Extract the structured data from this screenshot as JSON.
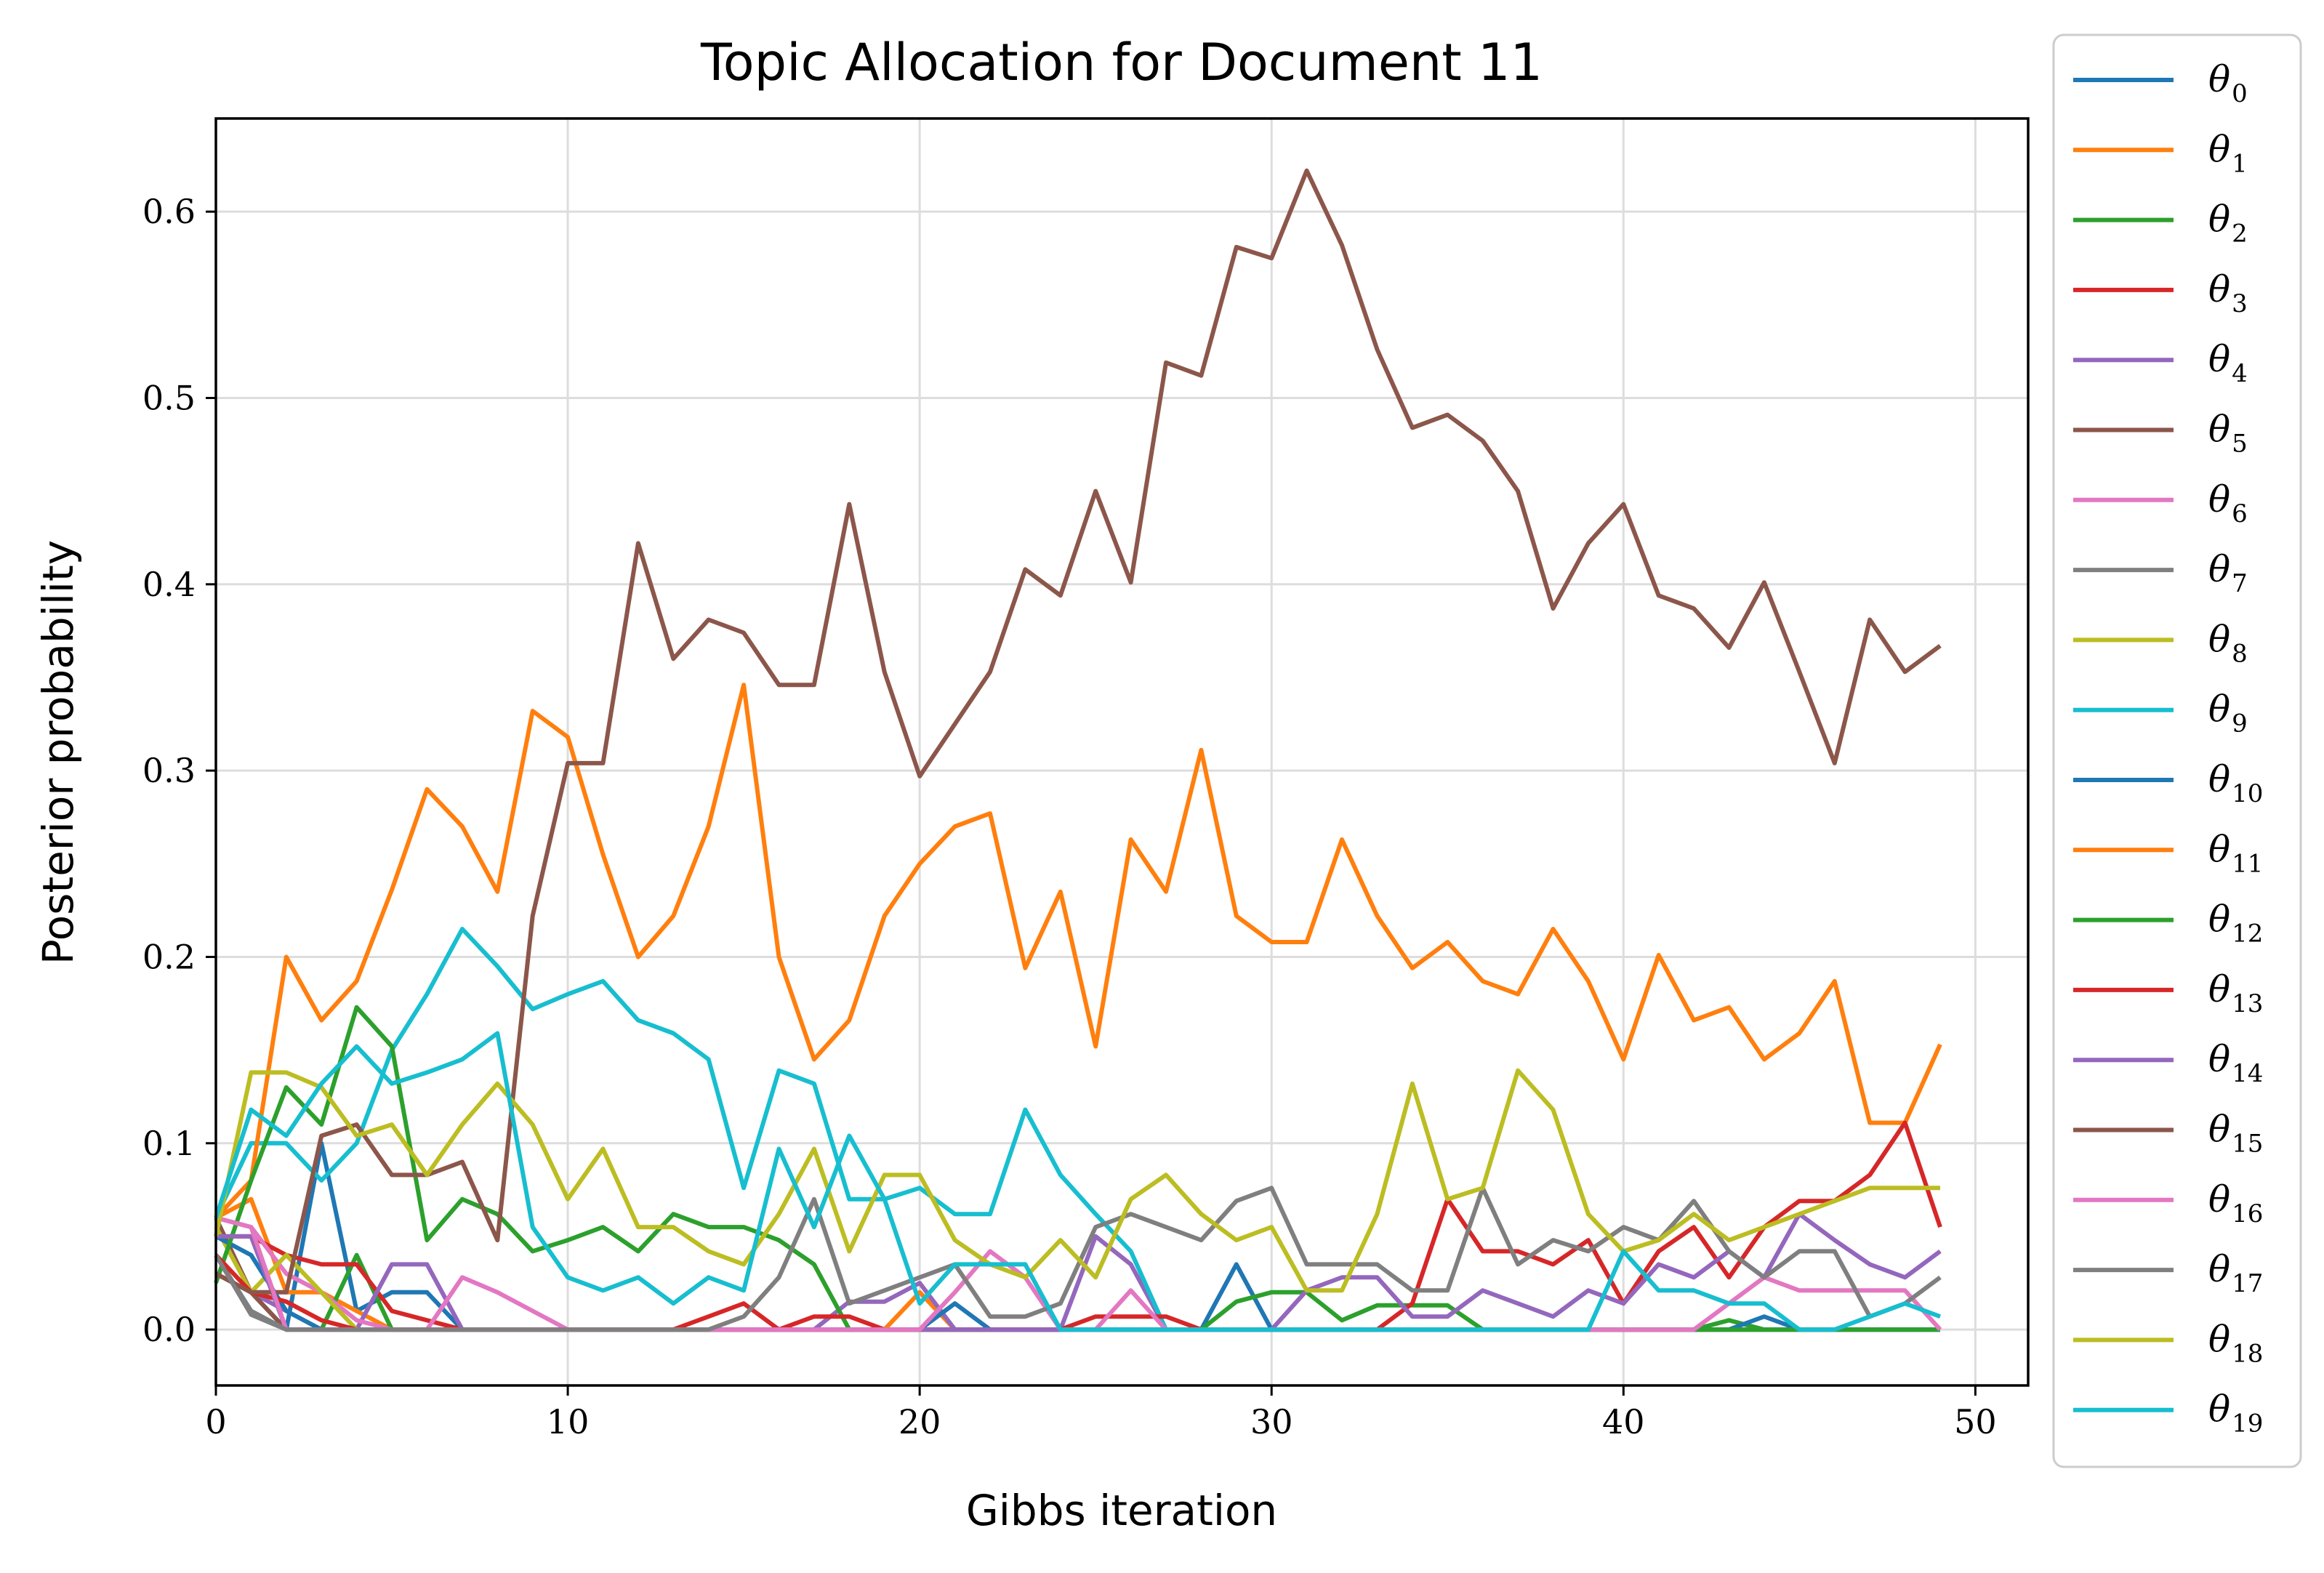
{
  "chart_data": {
    "type": "line",
    "title": "Topic Allocation for Document 11",
    "xlabel": "Gibbs iteration",
    "ylabel": "Posterior probability",
    "xlim": [
      0,
      51.5
    ],
    "ylim": [
      -0.03,
      0.65
    ],
    "x_ticks": [
      0,
      10,
      20,
      30,
      40,
      50
    ],
    "y_ticks": [
      0.0,
      0.1,
      0.2,
      0.3,
      0.4,
      0.5,
      0.6
    ],
    "x_tick_labels": [
      "0",
      "10",
      "20",
      "30",
      "40",
      "50"
    ],
    "y_tick_labels": [
      "0.0",
      "0.1",
      "0.2",
      "0.3",
      "0.4",
      "0.5",
      "0.6"
    ],
    "grid": true,
    "legend_position": "outside-right",
    "x": [
      0,
      1,
      2,
      3,
      4,
      5,
      6,
      7,
      8,
      9,
      10,
      11,
      12,
      13,
      14,
      15,
      16,
      17,
      18,
      19,
      20,
      21,
      22,
      23,
      24,
      25,
      26,
      27,
      28,
      29,
      30,
      31,
      32,
      33,
      34,
      35,
      36,
      37,
      38,
      39,
      40,
      41,
      42,
      43,
      44,
      45,
      46,
      47,
      48,
      49
    ],
    "series": [
      {
        "name": "θ",
        "sub": "0",
        "color": "#1f77b4",
        "values": [
          0.04,
          0.01,
          0.0,
          0.1,
          0.01,
          0.02,
          0.02,
          0.0,
          0.0,
          0.0,
          0.0,
          0.0,
          0.0,
          0.0,
          0.0,
          0.0,
          0.0,
          0.0,
          0.0,
          0.0,
          0.0,
          0.0,
          0.0,
          0.0,
          0.0,
          0.0,
          0.0,
          0.0,
          0.0,
          0.035,
          0.0,
          0.0,
          0.0,
          0.0,
          0.0,
          0.0,
          0.0,
          0.0,
          0.0,
          0.0,
          0.0,
          0.0,
          0.0,
          0.0,
          0.0,
          0.0,
          0.0,
          0.0,
          0.0,
          0.0
        ]
      },
      {
        "name": "θ",
        "sub": "1",
        "color": "#ff7f0e",
        "values": [
          0.06,
          0.07,
          0.02,
          0.02,
          0.01,
          0.0,
          0.0,
          0.0,
          0.0,
          0.0,
          0.0,
          0.0,
          0.0,
          0.0,
          0.0,
          0.0,
          0.0,
          0.0,
          0.0,
          0.0,
          0.02,
          0.0,
          0.0,
          0.0,
          0.0,
          0.0,
          0.0,
          0.0,
          0.0,
          0.0,
          0.0,
          0.0,
          0.0,
          0.0,
          0.0,
          0.0,
          0.0,
          0.0,
          0.0,
          0.0,
          0.0,
          0.0,
          0.0,
          0.0,
          0.0,
          0.0,
          0.0,
          0.0,
          0.0,
          0.0
        ]
      },
      {
        "name": "θ",
        "sub": "2",
        "color": "#2ca02c",
        "values": [
          0.03,
          0.02,
          0.0,
          0.0,
          0.04,
          0.0,
          0.0,
          0.0,
          0.0,
          0.0,
          0.0,
          0.0,
          0.0,
          0.0,
          0.0,
          0.0,
          0.0,
          0.0,
          0.0,
          0.0,
          0.0,
          0.0,
          0.0,
          0.0,
          0.0,
          0.0,
          0.0,
          0.0,
          0.0,
          0.015,
          0.02,
          0.02,
          0.005,
          0.013,
          0.013,
          0.013,
          0.0,
          0.0,
          0.0,
          0.0,
          0.0,
          0.0,
          0.0,
          0.005,
          0.0,
          0.0,
          0.0,
          0.0,
          0.0,
          0.0
        ]
      },
      {
        "name": "θ",
        "sub": "3",
        "color": "#d62728",
        "values": [
          0.05,
          0.05,
          0.04,
          0.035,
          0.035,
          0.01,
          0.005,
          0.0,
          0.0,
          0.0,
          0.0,
          0.0,
          0.0,
          0.0,
          0.0,
          0.0,
          0.0,
          0.0,
          0.0,
          0.0,
          0.0,
          0.0,
          0.0,
          0.0,
          0.0,
          0.0,
          0.0,
          0.0,
          0.0,
          0.0,
          0.0,
          0.0,
          0.0,
          0.0,
          0.0,
          0.0,
          0.0,
          0.0,
          0.0,
          0.0,
          0.0,
          0.0,
          0.0,
          0.0,
          0.0,
          0.0,
          0.0,
          0.0,
          0.0,
          0.0
        ]
      },
      {
        "name": "θ",
        "sub": "4",
        "color": "#9467bd",
        "values": [
          0.03,
          0.02,
          0.01,
          0.0,
          0.0,
          0.035,
          0.035,
          0.0,
          0.0,
          0.0,
          0.0,
          0.0,
          0.0,
          0.0,
          0.0,
          0.0,
          0.0,
          0.0,
          0.015,
          0.015,
          0.025,
          0.0,
          0.0,
          0.0,
          0.0,
          0.05,
          0.035,
          0.0,
          0.0,
          0.0,
          0.0,
          0.0,
          0.0,
          0.0,
          0.0,
          0.0,
          0.0,
          0.0,
          0.0,
          0.0,
          0.0,
          0.0,
          0.0,
          0.0,
          0.0,
          0.0,
          0.0,
          0.0,
          0.0,
          0.0
        ]
      },
      {
        "name": "θ",
        "sub": "5",
        "color": "#8c564b",
        "values": [
          0.06,
          0.02,
          0.0,
          0.0,
          0.0,
          0.0,
          0.0,
          0.0,
          0.0,
          0.0,
          0.0,
          0.0,
          0.0,
          0.0,
          0.0,
          0.0,
          0.0,
          0.0,
          0.0,
          0.0,
          0.0,
          0.0,
          0.0,
          0.0,
          0.0,
          0.0,
          0.0,
          0.0,
          0.0,
          0.0,
          0.0,
          0.0,
          0.0,
          0.0,
          0.0,
          0.0,
          0.0,
          0.0,
          0.0,
          0.0,
          0.0,
          0.0,
          0.0,
          0.0,
          0.0,
          0.0,
          0.0,
          0.0,
          0.0,
          0.0
        ]
      },
      {
        "name": "θ",
        "sub": "6",
        "color": "#e377c2",
        "values": [
          0.06,
          0.055,
          0.03,
          0.02,
          0.005,
          0.0,
          0.0,
          0.028,
          0.02,
          0.01,
          0.0,
          0.0,
          0.0,
          0.0,
          0.0,
          0.0,
          0.0,
          0.0,
          0.0,
          0.0,
          0.0,
          0.0,
          0.0,
          0.0,
          0.0,
          0.0,
          0.0,
          0.0,
          0.0,
          0.0,
          0.0,
          0.0,
          0.0,
          0.0,
          0.0,
          0.0,
          0.0,
          0.0,
          0.0,
          0.0,
          0.0,
          0.0,
          0.0,
          0.0,
          0.0,
          0.0,
          0.0,
          0.0,
          0.0,
          0.0
        ]
      },
      {
        "name": "θ",
        "sub": "7",
        "color": "#7f7f7f",
        "values": [
          0.04,
          0.01,
          0.0,
          0.0,
          0.0,
          0.0,
          0.0,
          0.0,
          0.0,
          0.0,
          0.0,
          0.0,
          0.0,
          0.0,
          0.0,
          0.0,
          0.0,
          0.0,
          0.0,
          0.0,
          0.0,
          0.0,
          0.0,
          0.0,
          0.0,
          0.0,
          0.0,
          0.0,
          0.0,
          0.0,
          0.0,
          0.0,
          0.0,
          0.0,
          0.0,
          0.0,
          0.0,
          0.0,
          0.0,
          0.0,
          0.0,
          0.0,
          0.0,
          0.0,
          0.0,
          0.0,
          0.0,
          0.0,
          0.0,
          0.0
        ]
      },
      {
        "name": "θ",
        "sub": "8",
        "color": "#bcbd22",
        "values": [
          0.055,
          0.02,
          0.04,
          0.02,
          0.0,
          0.0,
          0.0,
          0.0,
          0.0,
          0.0,
          0.0,
          0.0,
          0.0,
          0.0,
          0.0,
          0.0,
          0.0,
          0.0,
          0.0,
          0.0,
          0.0,
          0.0,
          0.0,
          0.0,
          0.0,
          0.0,
          0.0,
          0.0,
          0.0,
          0.0,
          0.0,
          0.0,
          0.0,
          0.0,
          0.0,
          0.0,
          0.0,
          0.0,
          0.0,
          0.0,
          0.0,
          0.0,
          0.0,
          0.0,
          0.0,
          0.0,
          0.0,
          0.0,
          0.0,
          0.0
        ]
      },
      {
        "name": "θ",
        "sub": "9",
        "color": "#17becf",
        "values": [
          0.06,
          0.1,
          0.1,
          0.08,
          0.1,
          0.15,
          0.18,
          0.215,
          0.195,
          0.172,
          0.18,
          0.187,
          0.166,
          0.159,
          0.145,
          0.076,
          0.139,
          0.132,
          0.07,
          0.07,
          0.076,
          0.062,
          0.062,
          0.118,
          0.083,
          0.062,
          0.042,
          0.0,
          0.0,
          0.0,
          0.0,
          0.0,
          0.0,
          0.0,
          0.0,
          0.0,
          0.0,
          0.0,
          0.0,
          0.0,
          0.0,
          0.0,
          0.0,
          0.0,
          0.0,
          0.0,
          0.0,
          0.0,
          0.0,
          0.0
        ]
      },
      {
        "name": "θ",
        "sub": "10",
        "color": "#1f77b4",
        "values": [
          0.05,
          0.04,
          0.01,
          0.0,
          0.0,
          0.0,
          0.0,
          0.0,
          0.0,
          0.0,
          0.0,
          0.0,
          0.0,
          0.0,
          0.0,
          0.0,
          0.0,
          0.0,
          0.0,
          0.0,
          0.0,
          0.014,
          0.0,
          0.0,
          0.0,
          0.0,
          0.0,
          0.0,
          0.0,
          0.0,
          0.0,
          0.0,
          0.0,
          0.0,
          0.0,
          0.0,
          0.0,
          0.0,
          0.0,
          0.0,
          0.0,
          0.0,
          0.0,
          0.0,
          0.007,
          0.0,
          0.0,
          0.0,
          0.0,
          0.0
        ]
      },
      {
        "name": "θ",
        "sub": "11",
        "color": "#ff7f0e",
        "values": [
          0.06,
          0.08,
          0.2,
          0.166,
          0.187,
          0.236,
          0.29,
          0.27,
          0.235,
          0.332,
          0.318,
          0.255,
          0.2,
          0.222,
          0.27,
          0.346,
          0.2,
          0.145,
          0.166,
          0.222,
          0.25,
          0.27,
          0.277,
          0.194,
          0.235,
          0.152,
          0.263,
          0.235,
          0.311,
          0.222,
          0.208,
          0.208,
          0.263,
          0.222,
          0.194,
          0.208,
          0.187,
          0.18,
          0.215,
          0.187,
          0.145,
          0.201,
          0.166,
          0.173,
          0.145,
          0.159,
          0.187,
          0.111,
          0.111,
          0.153
        ]
      },
      {
        "name": "θ",
        "sub": "12",
        "color": "#2ca02c",
        "values": [
          0.025,
          0.08,
          0.13,
          0.11,
          0.173,
          0.152,
          0.048,
          0.07,
          0.062,
          0.042,
          0.048,
          0.055,
          0.042,
          0.062,
          0.055,
          0.055,
          0.048,
          0.035,
          0.0,
          0.0,
          0.0,
          0.0,
          0.0,
          0.0,
          0.0,
          0.0,
          0.0,
          0.0,
          0.0,
          0.0,
          0.0,
          0.0,
          0.0,
          0.0,
          0.0,
          0.0,
          0.0,
          0.0,
          0.0,
          0.0,
          0.0,
          0.0,
          0.0,
          0.0,
          0.0,
          0.0,
          0.0,
          0.0,
          0.0,
          0.0
        ]
      },
      {
        "name": "θ",
        "sub": "13",
        "color": "#d62728",
        "values": [
          0.04,
          0.02,
          0.015,
          0.005,
          0.0,
          0.0,
          0.0,
          0.0,
          0.0,
          0.0,
          0.0,
          0.0,
          0.0,
          0.0,
          0.007,
          0.014,
          0.0,
          0.007,
          0.007,
          0.0,
          0.0,
          0.0,
          0.0,
          0.0,
          0.0,
          0.007,
          0.007,
          0.007,
          0.0,
          0.0,
          0.0,
          0.0,
          0.0,
          0.0,
          0.014,
          0.07,
          0.042,
          0.042,
          0.035,
          0.048,
          0.014,
          0.042,
          0.055,
          0.028,
          0.055,
          0.069,
          0.069,
          0.083,
          0.111,
          0.055
        ]
      },
      {
        "name": "θ",
        "sub": "14",
        "color": "#9467bd",
        "values": [
          0.05,
          0.05,
          0.0,
          0.0,
          0.0,
          0.0,
          0.0,
          0.0,
          0.0,
          0.0,
          0.0,
          0.0,
          0.0,
          0.0,
          0.0,
          0.0,
          0.0,
          0.0,
          0.0,
          0.0,
          0.0,
          0.0,
          0.0,
          0.0,
          0.0,
          0.0,
          0.0,
          0.0,
          0.0,
          0.0,
          0.0,
          0.021,
          0.028,
          0.028,
          0.007,
          0.007,
          0.021,
          0.014,
          0.007,
          0.021,
          0.014,
          0.035,
          0.028,
          0.042,
          0.028,
          0.062,
          0.048,
          0.035,
          0.028,
          0.042
        ]
      },
      {
        "name": "θ",
        "sub": "15",
        "color": "#8c564b",
        "values": [
          0.03,
          0.02,
          0.02,
          0.104,
          0.11,
          0.083,
          0.083,
          0.09,
          0.048,
          0.222,
          0.304,
          0.304,
          0.422,
          0.36,
          0.381,
          0.374,
          0.346,
          0.346,
          0.443,
          0.353,
          0.297,
          0.325,
          0.353,
          0.408,
          0.394,
          0.45,
          0.401,
          0.519,
          0.512,
          0.581,
          0.575,
          0.622,
          0.582,
          0.526,
          0.484,
          0.491,
          0.477,
          0.45,
          0.387,
          0.422,
          0.443,
          0.394,
          0.387,
          0.366,
          0.401,
          0.353,
          0.304,
          0.381,
          0.353,
          0.367
        ]
      },
      {
        "name": "θ",
        "sub": "16",
        "color": "#e377c2",
        "values": [
          0.06,
          0.055,
          0.0,
          0.0,
          0.0,
          0.0,
          0.0,
          0.0,
          0.0,
          0.0,
          0.0,
          0.0,
          0.0,
          0.0,
          0.0,
          0.0,
          0.0,
          0.0,
          0.0,
          0.0,
          0.0,
          0.02,
          0.042,
          0.028,
          0.0,
          0.0,
          0.021,
          0.0,
          0.0,
          0.0,
          0.0,
          0.0,
          0.0,
          0.0,
          0.0,
          0.0,
          0.0,
          0.0,
          0.0,
          0.0,
          0.0,
          0.0,
          0.0,
          0.014,
          0.028,
          0.021,
          0.021,
          0.021,
          0.021,
          0.0
        ]
      },
      {
        "name": "θ",
        "sub": "17",
        "color": "#7f7f7f",
        "values": [
          0.04,
          0.008,
          0.0,
          0.0,
          0.0,
          0.0,
          0.0,
          0.0,
          0.0,
          0.0,
          0.0,
          0.0,
          0.0,
          0.0,
          0.0,
          0.007,
          0.028,
          0.07,
          0.014,
          0.021,
          0.028,
          0.035,
          0.007,
          0.007,
          0.014,
          0.055,
          0.062,
          0.055,
          0.048,
          0.069,
          0.076,
          0.035,
          0.035,
          0.035,
          0.021,
          0.021,
          0.076,
          0.035,
          0.048,
          0.042,
          0.055,
          0.048,
          0.069,
          0.042,
          0.028,
          0.042,
          0.042,
          0.007,
          0.014,
          0.028
        ]
      },
      {
        "name": "θ",
        "sub": "18",
        "color": "#bcbd22",
        "values": [
          0.05,
          0.138,
          0.138,
          0.13,
          0.104,
          0.11,
          0.083,
          0.11,
          0.132,
          0.11,
          0.07,
          0.097,
          0.055,
          0.055,
          0.042,
          0.035,
          0.062,
          0.097,
          0.042,
          0.083,
          0.083,
          0.048,
          0.035,
          0.028,
          0.048,
          0.028,
          0.07,
          0.083,
          0.062,
          0.048,
          0.055,
          0.021,
          0.021,
          0.062,
          0.132,
          0.07,
          0.076,
          0.139,
          0.118,
          0.062,
          0.042,
          0.048,
          0.062,
          0.048,
          0.055,
          0.062,
          0.069,
          0.076,
          0.076,
          0.076
        ]
      },
      {
        "name": "θ",
        "sub": "19",
        "color": "#17becf",
        "values": [
          0.06,
          0.118,
          0.104,
          0.132,
          0.152,
          0.132,
          0.138,
          0.145,
          0.159,
          0.055,
          0.028,
          0.021,
          0.028,
          0.014,
          0.028,
          0.021,
          0.097,
          0.055,
          0.104,
          0.07,
          0.014,
          0.035,
          0.035,
          0.035,
          0.0,
          0.0,
          0.0,
          0.0,
          0.0,
          0.0,
          0.0,
          0.0,
          0.0,
          0.0,
          0.0,
          0.0,
          0.0,
          0.0,
          0.0,
          0.0,
          0.042,
          0.021,
          0.021,
          0.014,
          0.014,
          0.0,
          0.0,
          0.007,
          0.014,
          0.007
        ]
      }
    ]
  }
}
